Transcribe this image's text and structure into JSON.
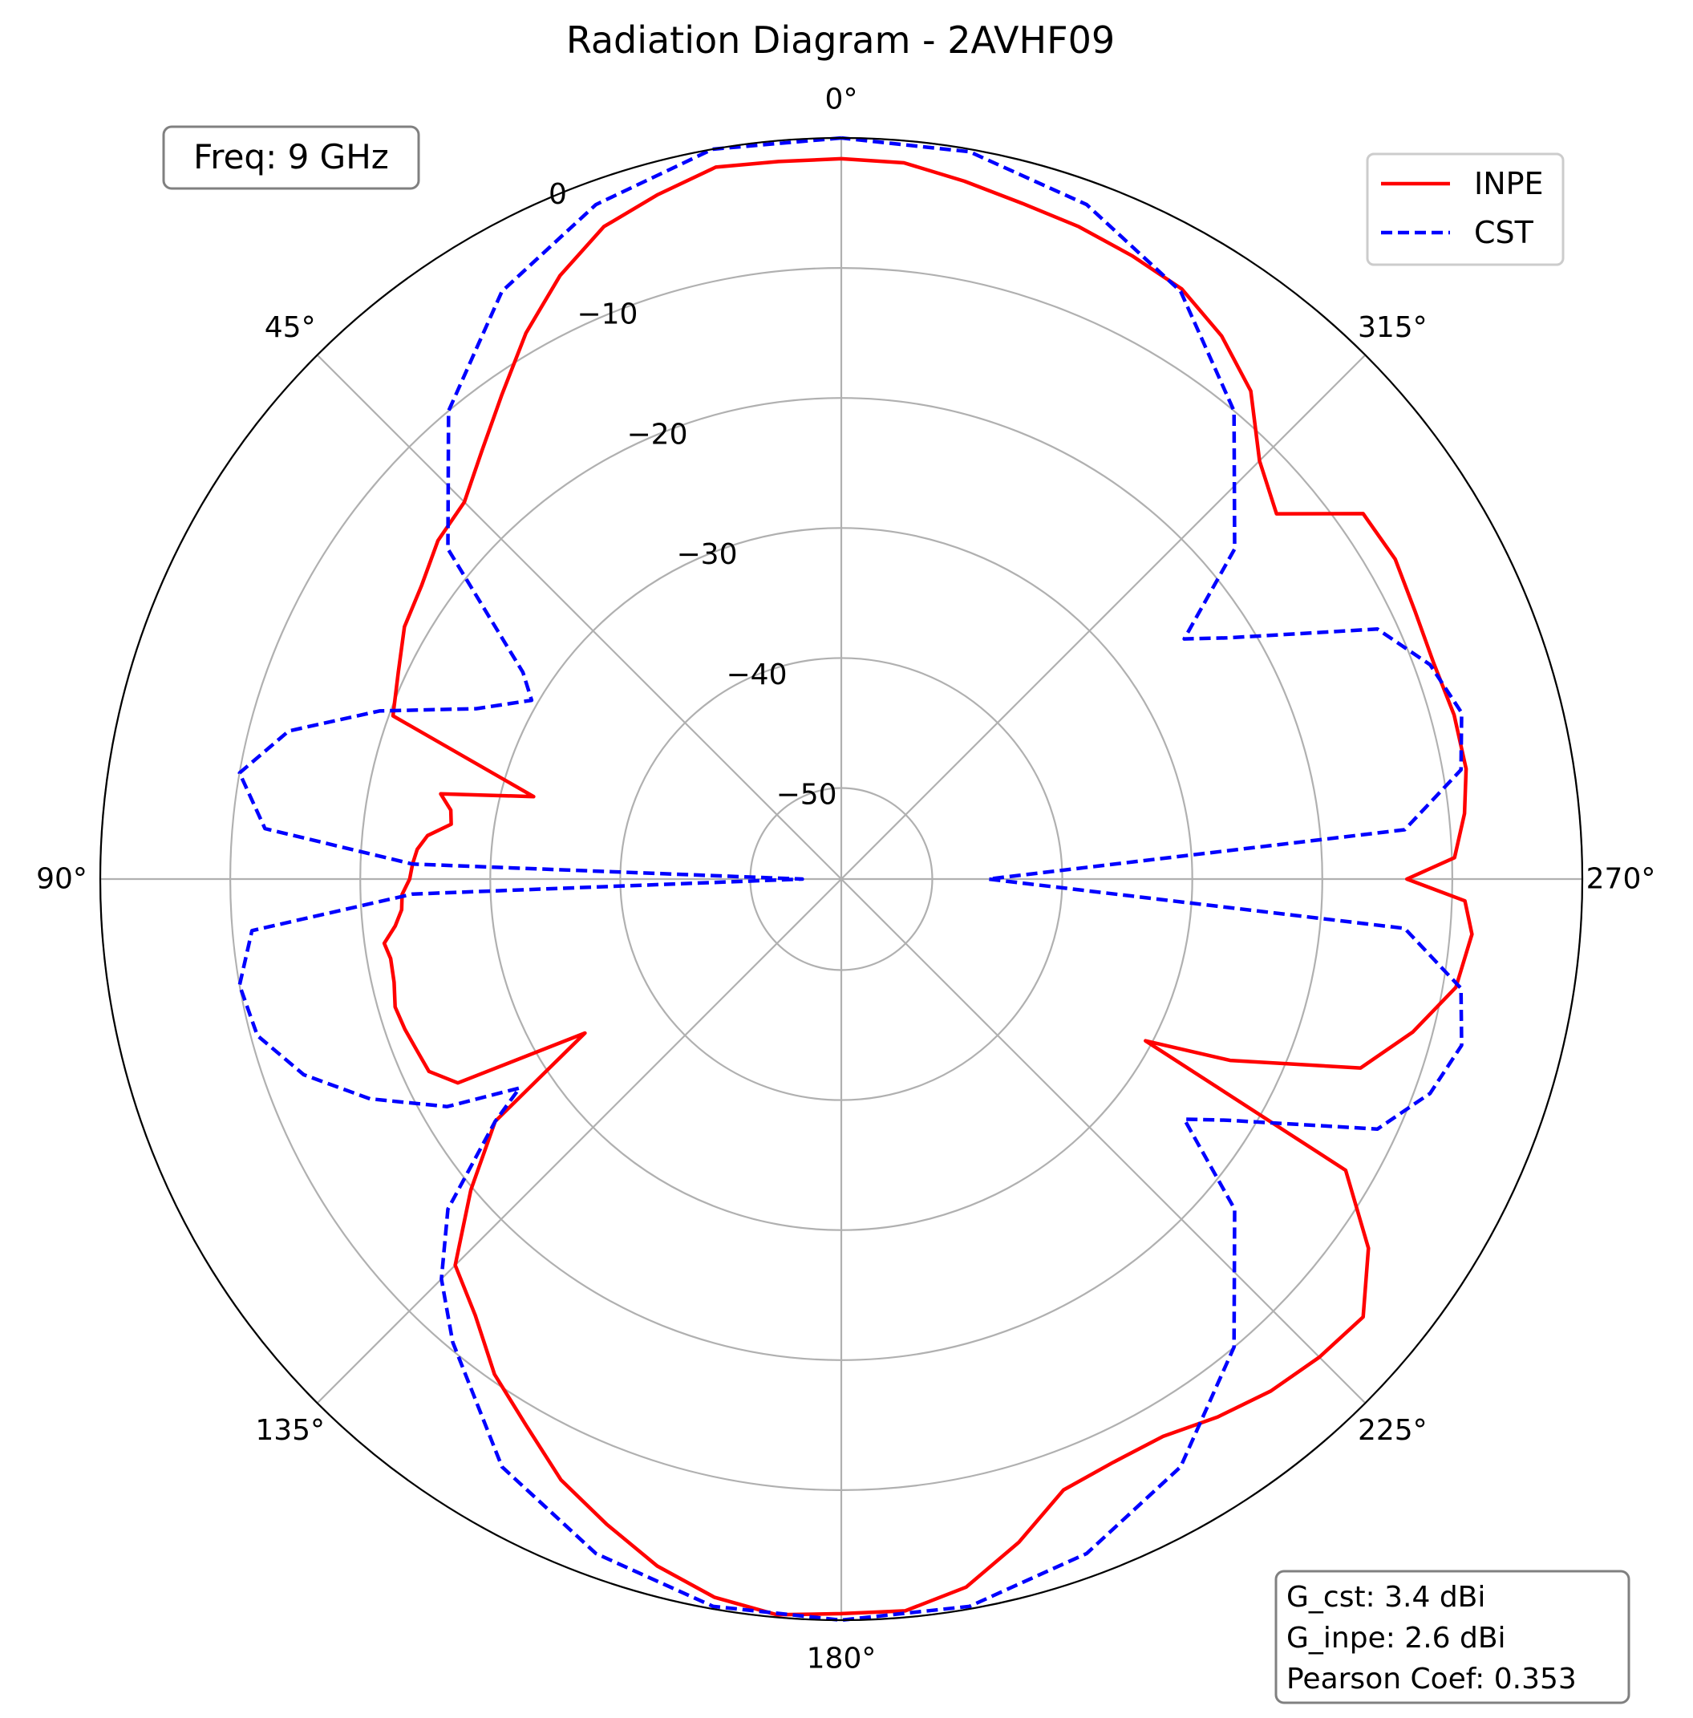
{
  "chart_data": {
    "type": "polar-line",
    "title": "Radiation Diagram - 2AVHF09",
    "theta_direction": "counter-clockwise",
    "theta_zero": "top",
    "theta_ticks": [
      "0°",
      "45°",
      "90°",
      "135°",
      "180°",
      "225°",
      "270°",
      "315°"
    ],
    "r_ticks": [
      {
        "value": -50,
        "label": "−50"
      },
      {
        "value": -40,
        "label": "−40"
      },
      {
        "value": -30,
        "label": "−30"
      },
      {
        "value": -20,
        "label": "−20"
      },
      {
        "value": -10,
        "label": "−10"
      },
      {
        "value": 0,
        "label": "0"
      }
    ],
    "r_range": [
      -57,
      0
    ],
    "grid": true,
    "legend_position": "top-right",
    "freq_label": "Freq: 9 GHz",
    "stats": [
      "G_cst: 3.4 dBi",
      "G_inpe: 2.6 dBi",
      "Pearson Coef: 0.353"
    ],
    "series": [
      {
        "name": "INPE",
        "color": "#ff0000",
        "dash": "solid",
        "points": [
          [
            0,
            -1.6
          ],
          [
            5,
            -1.6
          ],
          [
            10,
            -1.4
          ],
          [
            15,
            -2.5
          ],
          [
            20,
            -3.6
          ],
          [
            25,
            -5.8
          ],
          [
            30,
            -8.5
          ],
          [
            35,
            -11.5
          ],
          [
            40,
            -14
          ],
          [
            45,
            -16
          ],
          [
            50,
            -16.5
          ],
          [
            55,
            -17.6
          ],
          [
            60,
            -18.2
          ],
          [
            65,
            -19.4
          ],
          [
            70,
            -20.3
          ],
          [
            75,
            -32.5
          ],
          [
            78,
            -25.5
          ],
          [
            80,
            -26.5
          ],
          [
            82,
            -26.7
          ],
          [
            84,
            -25
          ],
          [
            86,
            -24.3
          ],
          [
            88,
            -24
          ],
          [
            90,
            -23.8
          ],
          [
            92,
            -23.2
          ],
          [
            94,
            -23.1
          ],
          [
            96,
            -22.5
          ],
          [
            98,
            -21.5
          ],
          [
            100,
            -21.8
          ],
          [
            103,
            -21.7
          ],
          [
            106,
            -21.3
          ],
          [
            109,
            -21.5
          ],
          [
            112,
            -21.8
          ],
          [
            115,
            -22
          ],
          [
            118,
            -23.6
          ],
          [
            121,
            -34
          ],
          [
            125,
            -24.5
          ],
          [
            130,
            -19.8
          ],
          [
            135,
            -15
          ],
          [
            140,
            -13.2
          ],
          [
            145,
            -10.5
          ],
          [
            150,
            -8.5
          ],
          [
            155,
            -6
          ],
          [
            160,
            -4.2
          ],
          [
            165,
            -2.3
          ],
          [
            170,
            -0.9
          ],
          [
            175,
            -0.2
          ],
          [
            180,
            -0.5
          ],
          [
            185,
            -0.5
          ],
          [
            190,
            -1.7
          ],
          [
            195,
            -4.2
          ],
          [
            200,
            -7
          ],
          [
            205,
            -7.5
          ],
          [
            210,
            -7.5
          ],
          [
            215,
            -6.5
          ],
          [
            220,
            -5.6
          ],
          [
            225,
            -5
          ],
          [
            230,
            -4.6
          ],
          [
            235,
            -7.5
          ],
          [
            240,
            -12.2
          ],
          [
            242,
            -30.5
          ],
          [
            245,
            -24
          ],
          [
            250,
            -14.5
          ],
          [
            255,
            -11.5
          ],
          [
            260,
            -9
          ],
          [
            265,
            -8.3
          ],
          [
            268,
            -9
          ],
          [
            270,
            -13.5
          ],
          [
            272,
            -9.8
          ],
          [
            276,
            -8.8
          ],
          [
            280,
            -8.2
          ],
          [
            285,
            -8.2
          ],
          [
            290,
            -8.5
          ],
          [
            295,
            -8.3
          ],
          [
            300,
            -7.8
          ],
          [
            305,
            -8
          ],
          [
            310,
            -13.3
          ],
          [
            315,
            -11.5
          ],
          [
            320,
            -8
          ],
          [
            325,
            -6
          ],
          [
            330,
            -4.6
          ],
          [
            335,
            -4.1
          ],
          [
            340,
            -3.6
          ],
          [
            345,
            -3.2
          ],
          [
            350,
            -2.5
          ],
          [
            355,
            -1.7
          ],
          [
            360,
            -1.6
          ]
        ]
      },
      {
        "name": "CST",
        "color": "#0000ff",
        "dash": "dashed",
        "points": [
          [
            0,
            0
          ],
          [
            10,
            0
          ],
          [
            20,
            -1.8
          ],
          [
            30,
            -4.8
          ],
          [
            40,
            -10
          ],
          [
            50,
            -17.5
          ],
          [
            57,
            -27.8
          ],
          [
            60,
            -29.5
          ],
          [
            65,
            -26
          ],
          [
            70,
            -19.2
          ],
          [
            75,
            -13
          ],
          [
            80,
            -10
          ],
          [
            85,
            -12.5
          ],
          [
            88,
            -24
          ],
          [
            90,
            -54
          ],
          [
            92,
            -24
          ],
          [
            95,
            -11.5
          ],
          [
            100,
            -10
          ],
          [
            105,
            -10.5
          ],
          [
            110,
            -13
          ],
          [
            115,
            -17
          ],
          [
            120,
            -22
          ],
          [
            123,
            -27.5
          ],
          [
            125,
            -24.5
          ],
          [
            130,
            -17.5
          ],
          [
            135,
            -13.5
          ],
          [
            140,
            -10.5
          ],
          [
            150,
            -4.8
          ],
          [
            160,
            -1.8
          ],
          [
            170,
            -0.2
          ],
          [
            180,
            0
          ],
          [
            190,
            -0.2
          ],
          [
            200,
            -1.8
          ],
          [
            210,
            -4.8
          ],
          [
            220,
            -10
          ],
          [
            230,
            -17.5
          ],
          [
            235,
            -24.8
          ],
          [
            238,
            -22
          ],
          [
            245,
            -11.5
          ],
          [
            250,
            -8.8
          ],
          [
            255,
            -7.6
          ],
          [
            260,
            -8.6
          ],
          [
            265,
            -13.5
          ],
          [
            270,
            -45.7
          ],
          [
            275,
            -13.5
          ],
          [
            280,
            -8.6
          ],
          [
            285,
            -7.6
          ],
          [
            290,
            -8.8
          ],
          [
            295,
            -11.5
          ],
          [
            302,
            -22
          ],
          [
            305,
            -24.8
          ],
          [
            310,
            -17.5
          ],
          [
            320,
            -10
          ],
          [
            330,
            -4.8
          ],
          [
            340,
            -1.8
          ],
          [
            350,
            -0.2
          ],
          [
            360,
            0
          ]
        ]
      }
    ]
  }
}
